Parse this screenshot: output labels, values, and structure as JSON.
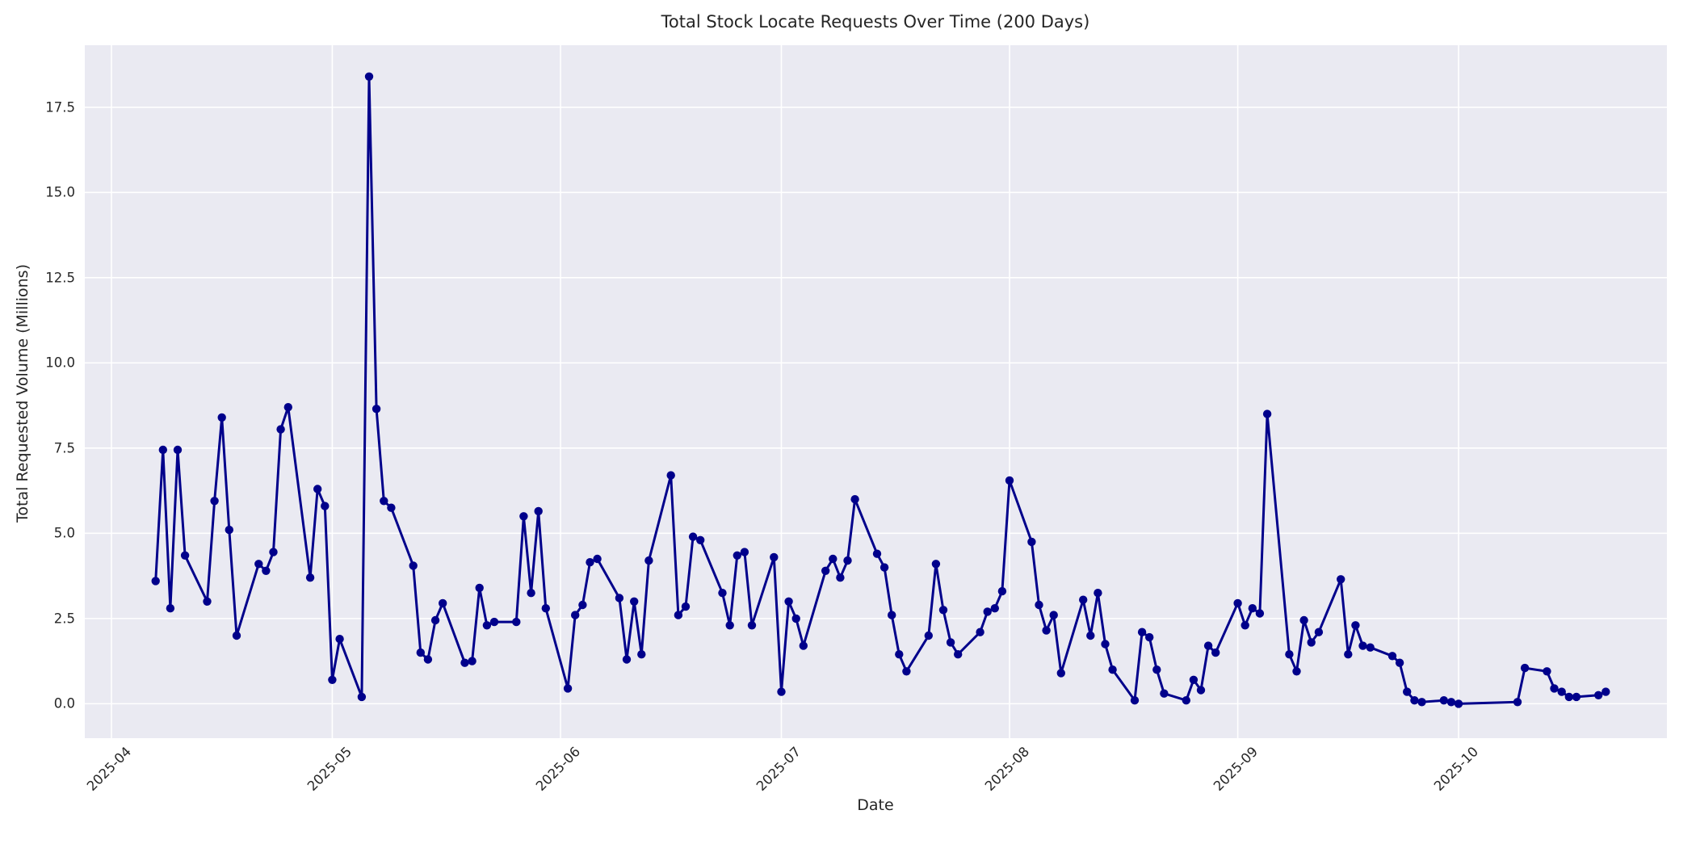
{
  "chart_data": {
    "type": "line",
    "title": "Total Stock Locate Requests Over Time (200 Days)",
    "xlabel": "Date",
    "ylabel": "Total Requested Volume (Millions)",
    "legend_position": "none",
    "grid": true,
    "plot_background": "#eaeaf2",
    "grid_color": "#ffffff",
    "line_color": "#00008b",
    "marker_style": "circle",
    "text_color": "#262626",
    "ylim": [
      -1.01,
      19.32
    ],
    "x_domain_days": [
      -3.62,
      211.3
    ],
    "x_epoch": "2025-04-01",
    "yticks": [
      0.0,
      2.5,
      5.0,
      7.5,
      10.0,
      12.5,
      15.0,
      17.5
    ],
    "ytick_labels": [
      "0.0",
      "2.5",
      "5.0",
      "7.5",
      "10.0",
      "12.5",
      "15.0",
      "17.5"
    ],
    "xtick_dates": [
      "2025-04-01",
      "2025-05-01",
      "2025-06-01",
      "2025-07-01",
      "2025-08-01",
      "2025-09-01",
      "2025-10-01"
    ],
    "xtick_labels": [
      "2025-04",
      "2025-05",
      "2025-06",
      "2025-07",
      "2025-08",
      "2025-09",
      "2025-10"
    ],
    "dates": [
      "2025-04-07",
      "2025-04-08",
      "2025-04-09",
      "2025-04-10",
      "2025-04-11",
      "2025-04-14",
      "2025-04-15",
      "2025-04-16",
      "2025-04-17",
      "2025-04-18",
      "2025-04-21",
      "2025-04-22",
      "2025-04-23",
      "2025-04-24",
      "2025-04-25",
      "2025-04-28",
      "2025-04-29",
      "2025-04-30",
      "2025-05-01",
      "2025-05-02",
      "2025-05-05",
      "2025-05-06",
      "2025-05-07",
      "2025-05-08",
      "2025-05-09",
      "2025-05-12",
      "2025-05-13",
      "2025-05-14",
      "2025-05-15",
      "2025-05-16",
      "2025-05-19",
      "2025-05-20",
      "2025-05-21",
      "2025-05-22",
      "2025-05-23",
      "2025-05-26",
      "2025-05-27",
      "2025-05-28",
      "2025-05-29",
      "2025-05-30",
      "2025-06-02",
      "2025-06-03",
      "2025-06-04",
      "2025-06-05",
      "2025-06-06",
      "2025-06-09",
      "2025-06-10",
      "2025-06-11",
      "2025-06-12",
      "2025-06-13",
      "2025-06-16",
      "2025-06-17",
      "2025-06-18",
      "2025-06-19",
      "2025-06-20",
      "2025-06-23",
      "2025-06-24",
      "2025-06-25",
      "2025-06-26",
      "2025-06-27",
      "2025-06-30",
      "2025-07-01",
      "2025-07-02",
      "2025-07-03",
      "2025-07-04",
      "2025-07-07",
      "2025-07-08",
      "2025-07-09",
      "2025-07-10",
      "2025-07-11",
      "2025-07-14",
      "2025-07-15",
      "2025-07-16",
      "2025-07-17",
      "2025-07-18",
      "2025-07-21",
      "2025-07-22",
      "2025-07-23",
      "2025-07-24",
      "2025-07-25",
      "2025-07-28",
      "2025-07-29",
      "2025-07-30",
      "2025-07-31",
      "2025-08-01",
      "2025-08-04",
      "2025-08-05",
      "2025-08-06",
      "2025-08-07",
      "2025-08-08",
      "2025-08-11",
      "2025-08-12",
      "2025-08-13",
      "2025-08-14",
      "2025-08-15",
      "2025-08-18",
      "2025-08-19",
      "2025-08-20",
      "2025-08-21",
      "2025-08-22",
      "2025-08-25",
      "2025-08-26",
      "2025-08-27",
      "2025-08-28",
      "2025-08-29",
      "2025-09-01",
      "2025-09-02",
      "2025-09-03",
      "2025-09-04",
      "2025-09-05",
      "2025-09-08",
      "2025-09-09",
      "2025-09-10",
      "2025-09-11",
      "2025-09-12",
      "2025-09-15",
      "2025-09-16",
      "2025-09-17",
      "2025-09-18",
      "2025-09-19",
      "2025-09-22",
      "2025-09-23",
      "2025-09-24",
      "2025-09-25",
      "2025-09-26",
      "2025-09-29",
      "2025-09-30",
      "2025-10-01",
      "2025-10-09",
      "2025-10-10",
      "2025-10-13",
      "2025-10-14",
      "2025-10-15",
      "2025-10-16",
      "2025-10-17",
      "2025-10-20",
      "2025-10-21"
    ],
    "values": [
      3.6,
      7.45,
      2.8,
      7.45,
      4.35,
      3.0,
      5.95,
      8.4,
      5.1,
      2.0,
      4.1,
      3.9,
      4.45,
      8.05,
      8.7,
      3.7,
      6.3,
      5.8,
      0.7,
      1.9,
      0.2,
      18.4,
      8.65,
      5.95,
      5.75,
      4.05,
      1.5,
      1.3,
      2.45,
      2.95,
      1.2,
      1.25,
      3.4,
      2.3,
      2.4,
      2.4,
      5.5,
      3.25,
      5.65,
      2.8,
      0.45,
      2.6,
      2.9,
      4.15,
      4.25,
      3.1,
      1.3,
      3.0,
      1.45,
      4.2,
      6.7,
      2.6,
      2.85,
      4.9,
      4.8,
      3.25,
      2.3,
      4.35,
      4.45,
      2.3,
      4.3,
      0.35,
      3.0,
      2.5,
      1.7,
      3.9,
      4.25,
      3.7,
      4.2,
      6.0,
      4.4,
      4.0,
      2.6,
      1.45,
      0.95,
      2.0,
      4.1,
      2.75,
      1.8,
      1.45,
      2.1,
      2.7,
      2.8,
      3.3,
      6.55,
      4.75,
      2.9,
      2.15,
      2.6,
      0.9,
      3.05,
      2.0,
      3.25,
      1.75,
      1.0,
      0.1,
      2.1,
      1.95,
      1.0,
      0.3,
      0.1,
      0.7,
      0.4,
      1.7,
      1.5,
      2.95,
      2.3,
      2.8,
      2.65,
      8.5,
      1.45,
      0.95,
      2.45,
      1.8,
      2.1,
      3.65,
      1.45,
      2.3,
      1.7,
      1.65,
      1.4,
      1.2,
      0.35,
      0.1,
      0.05,
      0.1,
      0.05,
      0.0,
      0.05,
      1.05,
      0.95,
      0.45,
      0.35,
      0.2,
      0.2,
      0.25,
      0.35
    ]
  }
}
